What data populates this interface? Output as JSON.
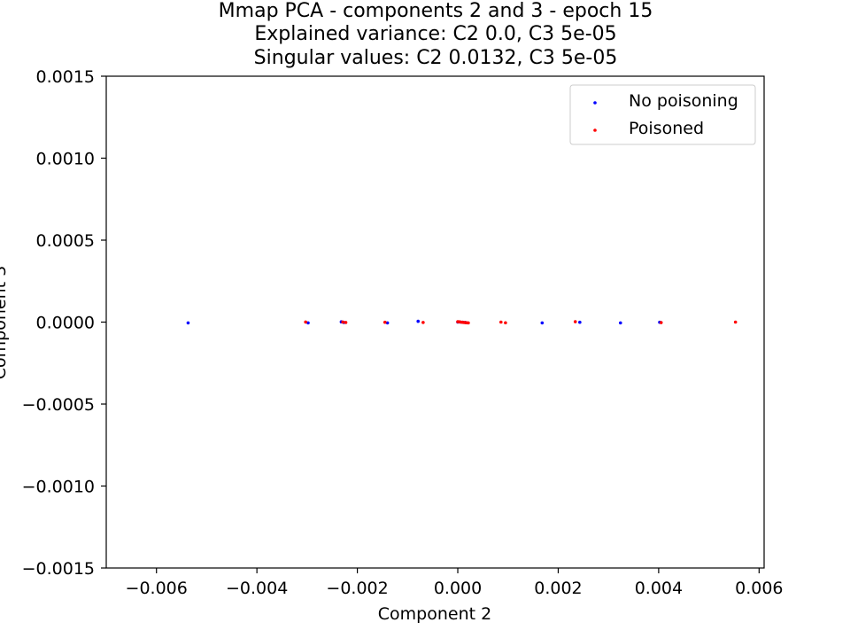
{
  "chart_data": {
    "type": "scatter",
    "title_lines": [
      "Mmap PCA - components 2 and 3 - epoch 15",
      "Explained variance: C2 0.0, C3 5e-05",
      "Singular values: C2 0.0132, C3 5e-05"
    ],
    "xlabel": "Component 2",
    "ylabel": "Component 3",
    "xlim": [
      -0.007,
      0.0061
    ],
    "ylim": [
      -0.0015,
      0.0015
    ],
    "xticks": [
      -0.006,
      -0.004,
      -0.002,
      0.0,
      0.002,
      0.004,
      0.006
    ],
    "xtick_labels": [
      "−0.006",
      "−0.004",
      "−0.002",
      "0.000",
      "0.002",
      "0.004",
      "0.006"
    ],
    "yticks": [
      0.0015,
      0.001,
      0.0005,
      0.0,
      -0.0005,
      -0.001,
      -0.0015
    ],
    "ytick_labels": [
      "0.0015",
      "0.0010",
      "0.0005",
      "0.0000",
      "−0.0005",
      "−0.0010",
      "−0.0015"
    ],
    "grid": false,
    "legend_position": "top-right",
    "series": [
      {
        "name": "No poisoning",
        "color": "#0000ff",
        "points": [
          [
            -0.00537,
            -5e-06
          ],
          [
            -0.00298,
            -5e-06
          ],
          [
            -0.00232,
            1.5e-06
          ],
          [
            -0.00227,
            -2e-06
          ],
          [
            -0.0014,
            -5e-06
          ],
          [
            -0.00079,
            5e-06
          ],
          [
            0.0,
            0.0
          ],
          [
            5e-05,
            0.0
          ],
          [
            0.0001,
            -1e-06
          ],
          [
            0.00015,
            -2e-06
          ],
          [
            0.00168,
            -5e-06
          ],
          [
            0.00243,
            -1e-06
          ],
          [
            0.00324,
            -5e-06
          ],
          [
            0.00402,
            -1e-06
          ]
        ]
      },
      {
        "name": "Poisoned",
        "color": "#ff0000",
        "points": [
          [
            -0.00303,
            5e-07
          ],
          [
            -0.00229,
            5e-07
          ],
          [
            -0.00223,
            -2e-06
          ],
          [
            -0.00145,
            -1e-06
          ],
          [
            -0.00069,
            -2e-06
          ],
          [
            0.0,
            2.5e-06
          ],
          [
            3e-05,
            2e-06
          ],
          [
            6e-05,
            0.0
          ],
          [
            9e-05,
            -1e-06
          ],
          [
            0.00012,
            -2e-06
          ],
          [
            0.00015,
            -3e-06
          ],
          [
            0.00018,
            -4e-06
          ],
          [
            0.00021,
            -5e-06
          ],
          [
            0.00086,
            0.0
          ],
          [
            0.00095,
            -4e-06
          ],
          [
            0.00234,
            2.5e-06
          ],
          [
            0.00405,
            -3e-06
          ],
          [
            0.00553,
            0.0
          ]
        ]
      }
    ]
  }
}
